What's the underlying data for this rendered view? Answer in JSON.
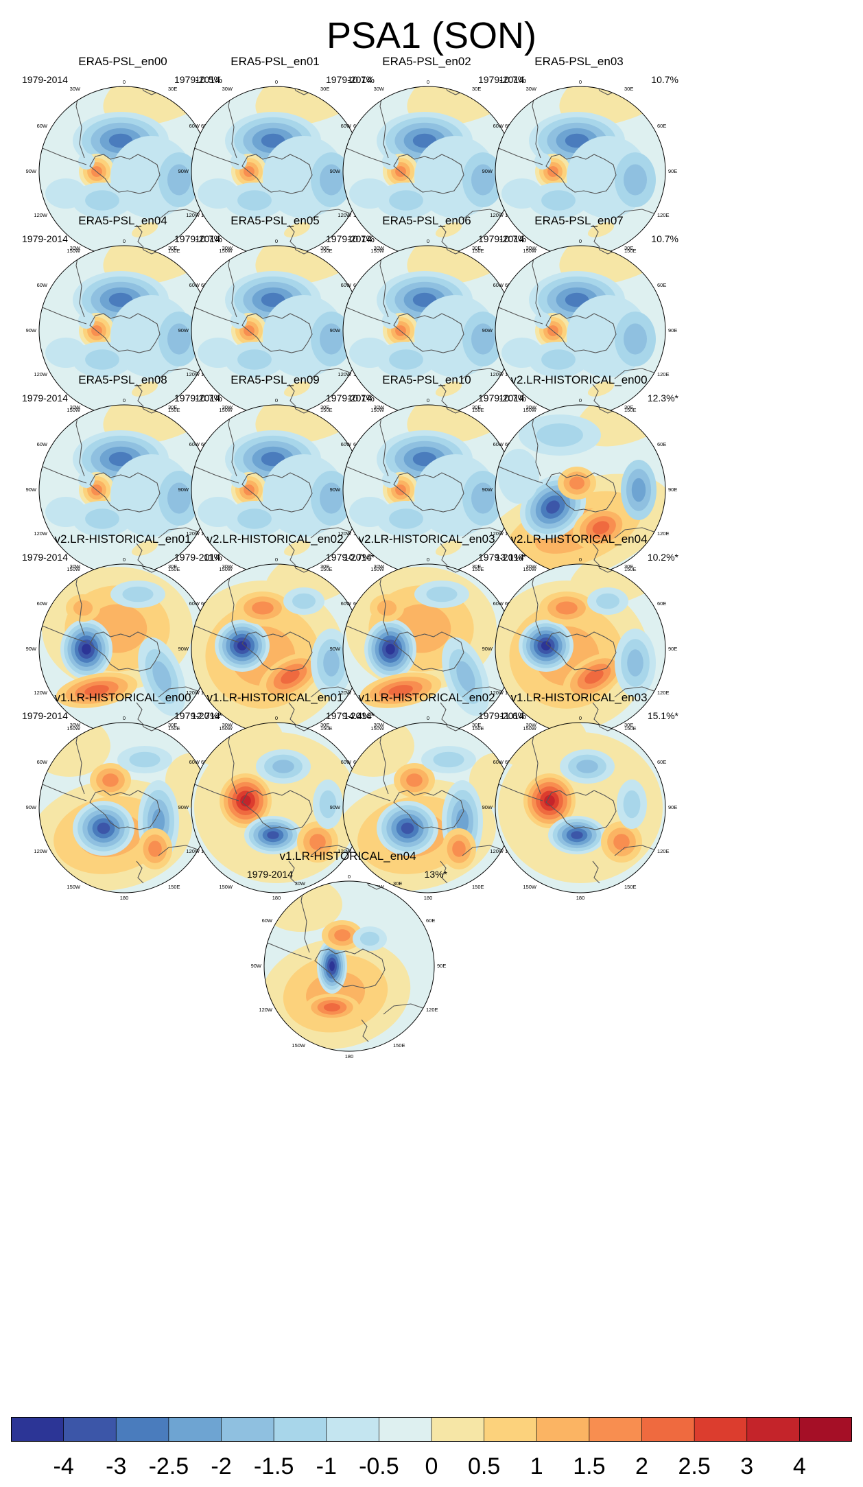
{
  "title": "PSA1 (SON)",
  "colors": {
    "scale": [
      "#2c3596",
      "#3c56a8",
      "#4a7cbd",
      "#6ea4d2",
      "#8fc0e0",
      "#a8d6ea",
      "#c4e5f0",
      "#def0f0",
      "#f6e6a6",
      "#fcd27c",
      "#fbb463",
      "#f88e50",
      "#ef6a3f",
      "#dc3d2e",
      "#c4242a",
      "#a50f26"
    ]
  },
  "colorbar": {
    "labels": [
      "-4",
      "-3",
      "-2.5",
      "-2",
      "-1.5",
      "-1",
      "-0.5",
      "0",
      "0.5",
      "1",
      "1.5",
      "2",
      "2.5",
      "3",
      "4"
    ]
  },
  "map_labels": {
    "lon_0": "0",
    "lon_30e": "30E",
    "lon_60e": "60E",
    "lon_90e": "90E",
    "lon_120e": "120E",
    "lon_150e": "150E",
    "lon_180": "180",
    "lon_150w": "150W",
    "lon_120w": "120W",
    "lon_90w": "90W",
    "lon_60w": "60W",
    "lon_30w": "30W"
  },
  "panels": [
    {
      "title": "ERA5-PSL_en00",
      "years": "1979-2014",
      "pct": "10.5%",
      "style": "era5"
    },
    {
      "title": "ERA5-PSL_en01",
      "years": "1979-2014",
      "pct": "10.7%",
      "style": "era5"
    },
    {
      "title": "ERA5-PSL_en02",
      "years": "1979-2014",
      "pct": "10.7%",
      "style": "era5"
    },
    {
      "title": "ERA5-PSL_en03",
      "years": "1979-2014",
      "pct": "10.7%",
      "style": "era5"
    },
    {
      "title": "ERA5-PSL_en04",
      "years": "1979-2014",
      "pct": "10.7%",
      "style": "era5"
    },
    {
      "title": "ERA5-PSL_en05",
      "years": "1979-2014",
      "pct": "10.7%",
      "style": "era5"
    },
    {
      "title": "ERA5-PSL_en06",
      "years": "1979-2014",
      "pct": "10.7%",
      "style": "era5"
    },
    {
      "title": "ERA5-PSL_en07",
      "years": "1979-2014",
      "pct": "10.7%",
      "style": "era5"
    },
    {
      "title": "ERA5-PSL_en08",
      "years": "1979-2014",
      "pct": "10.7%",
      "style": "era5"
    },
    {
      "title": "ERA5-PSL_en09",
      "years": "1979-2014",
      "pct": "10.7%",
      "style": "era5"
    },
    {
      "title": "ERA5-PSL_en10",
      "years": "1979-2014",
      "pct": "10.7%",
      "style": "era5"
    },
    {
      "title": "v2.LR-HISTORICAL_en00",
      "years": "1979-2014",
      "pct": "12.3%*",
      "style": "v2a"
    },
    {
      "title": "v2.LR-HISTORICAL_en01",
      "years": "1979-2014",
      "pct": "11%",
      "style": "v2b"
    },
    {
      "title": "v2.LR-HISTORICAL_en02",
      "years": "1979-2014",
      "pct": "10.7%*",
      "style": "v2c"
    },
    {
      "title": "v2.LR-HISTORICAL_en03",
      "years": "1979-2014",
      "pct": "13.1%*",
      "style": "v2b"
    },
    {
      "title": "v2.LR-HISTORICAL_en04",
      "years": "1979-2014",
      "pct": "10.2%*",
      "style": "v2c"
    },
    {
      "title": "v1.LR-HISTORICAL_en00",
      "years": "1979-2014",
      "pct": "12.7%*",
      "style": "v1a"
    },
    {
      "title": "v1.LR-HISTORICAL_en01",
      "years": "1979-2014",
      "pct": "14.4%*",
      "style": "v1b"
    },
    {
      "title": "v1.LR-HISTORICAL_en02",
      "years": "1979-2014",
      "pct": "11.6%",
      "style": "v1a"
    },
    {
      "title": "v1.LR-HISTORICAL_en03",
      "years": "1979-2014",
      "pct": "15.1%*",
      "style": "v1b"
    },
    {
      "title": "v1.LR-HISTORICAL_en04",
      "years": "1979-2014",
      "pct": "13%*",
      "style": "v1c"
    }
  ]
}
